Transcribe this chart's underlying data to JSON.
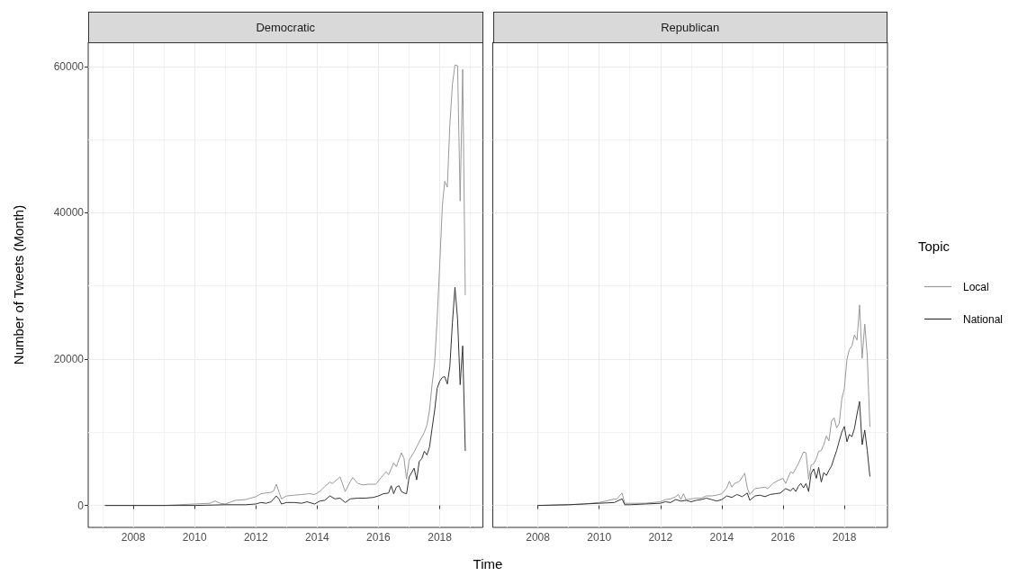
{
  "chart_data": [
    {
      "type": "line",
      "title": "Democratic",
      "xlabel": "Time",
      "ylabel": "Number of Tweets (Month)",
      "series": [
        {
          "color": "#999999",
          "x": [
            "2007-02",
            "2009-01",
            "2009-07",
            "2010-01",
            "2010-07",
            "2010-09",
            "2010-11",
            "2011-01",
            "2011-05",
            "2011-09",
            "2012-01",
            "2012-03",
            "2012-05",
            "2012-07",
            "2012-08",
            "2012-09",
            "2012-10",
            "2012-11",
            "2013-01",
            "2013-04",
            "2013-07",
            "2013-10",
            "2013-12",
            "2014-02",
            "2014-04",
            "2014-06",
            "2014-07",
            "2014-09",
            "2014-10",
            "2014-12",
            "2015-02",
            "2015-03",
            "2015-05",
            "2015-07",
            "2015-09",
            "2015-12",
            "2016-02",
            "2016-04",
            "2016-05",
            "2016-07",
            "2016-08",
            "2016-10",
            "2016-11",
            "2016-12",
            "2017-01",
            "2017-03",
            "2017-05",
            "2017-07",
            "2017-08",
            "2017-09",
            "2017-10",
            "2017-11",
            "2017-12",
            "2018-01",
            "2018-02",
            "2018-03",
            "2018-04",
            "2018-05",
            "2018-06",
            "2018-07",
            "2018-08",
            "2018-09",
            "2018-10",
            "2018-11"
          ],
          "values": [
            0,
            0,
            100,
            200,
            300,
            600,
            300,
            200,
            700,
            800,
            1200,
            1600,
            1700,
            1800,
            2000,
            2900,
            1900,
            900,
            1300,
            1400,
            1500,
            1600,
            1500,
            1900,
            2600,
            3200,
            3000,
            3600,
            3900,
            1900,
            3300,
            3800,
            3000,
            2800,
            2900,
            2900,
            3800,
            4600,
            4200,
            5800,
            5300,
            7200,
            6400,
            3600,
            6200,
            7300,
            8700,
            10000,
            11000,
            13000,
            16500,
            19500,
            25500,
            33000,
            41000,
            44300,
            43500,
            52000,
            57600,
            60200,
            60100,
            41600,
            59600,
            28800
          ]
        },
        {
          "color": "#333333",
          "x": [
            "2007-02",
            "2010-01",
            "2011-01",
            "2011-09",
            "2012-01",
            "2012-03",
            "2012-05",
            "2012-07",
            "2012-09",
            "2012-10",
            "2012-11",
            "2013-01",
            "2013-04",
            "2013-07",
            "2013-09",
            "2013-12",
            "2014-02",
            "2014-04",
            "2014-06",
            "2014-08",
            "2014-10",
            "2014-12",
            "2015-02",
            "2015-05",
            "2015-08",
            "2015-11",
            "2016-01",
            "2016-03",
            "2016-05",
            "2016-06",
            "2016-07",
            "2016-08",
            "2016-09",
            "2016-10",
            "2016-11",
            "2016-12",
            "2017-01",
            "2017-02",
            "2017-03",
            "2017-04",
            "2017-05",
            "2017-06",
            "2017-07",
            "2017-08",
            "2017-09",
            "2017-10",
            "2017-11",
            "2017-12",
            "2018-01",
            "2018-02",
            "2018-03",
            "2018-04",
            "2018-05",
            "2018-06",
            "2018-07",
            "2018-08",
            "2018-09",
            "2018-10",
            "2018-11"
          ],
          "values": [
            0,
            0,
            100,
            100,
            200,
            400,
            300,
            500,
            1300,
            900,
            200,
            400,
            400,
            300,
            500,
            200,
            600,
            700,
            1300,
            900,
            1000,
            400,
            900,
            1000,
            1000,
            1100,
            1300,
            1600,
            1700,
            2700,
            1600,
            2500,
            2700,
            1900,
            1700,
            1600,
            3900,
            4500,
            5100,
            3500,
            6000,
            6400,
            7400,
            6900,
            8000,
            10500,
            13000,
            16000,
            17000,
            17500,
            17600,
            16600,
            19000,
            25000,
            29800,
            25500,
            16500,
            21800,
            7500
          ]
        }
      ],
      "xlim": [
        "2006-07-13",
        "2019-05-30"
      ],
      "xticks": [
        "2008",
        "2010",
        "2012",
        "2014",
        "2016",
        "2018"
      ],
      "ylim": [
        -3000,
        63300
      ],
      "yticks": [
        0,
        20000,
        40000,
        60000
      ],
      "grid": true
    },
    {
      "type": "line",
      "title": "Republican",
      "legend_title": "Topic",
      "series": [
        {
          "name": "Local",
          "color": "#999999",
          "x": [
            "2008-01",
            "2009-01",
            "2009-07",
            "2010-01",
            "2010-06",
            "2010-08",
            "2010-10",
            "2010-11",
            "2011-01",
            "2011-07",
            "2012-01",
            "2012-03",
            "2012-05",
            "2012-07",
            "2012-08",
            "2012-09",
            "2012-10",
            "2012-11",
            "2013-01",
            "2013-03",
            "2013-05",
            "2013-07",
            "2013-09",
            "2013-11",
            "2014-01",
            "2014-03",
            "2014-04",
            "2014-05",
            "2014-06",
            "2014-08",
            "2014-10",
            "2014-11",
            "2014-12",
            "2015-02",
            "2015-04",
            "2015-06",
            "2015-07",
            "2015-09",
            "2015-11",
            "2016-01",
            "2016-02",
            "2016-04",
            "2016-05",
            "2016-07",
            "2016-09",
            "2016-10",
            "2016-11",
            "2016-12",
            "2017-01",
            "2017-02",
            "2017-03",
            "2017-04",
            "2017-05",
            "2017-06",
            "2017-07",
            "2017-08",
            "2017-09",
            "2017-10",
            "2017-11",
            "2017-12",
            "2018-01",
            "2018-02",
            "2018-03",
            "2018-04",
            "2018-05",
            "2018-06",
            "2018-07",
            "2018-08",
            "2018-09",
            "2018-10",
            "2018-11"
          ],
          "values": [
            0,
            100,
            200,
            400,
            800,
            900,
            1700,
            300,
            300,
            300,
            500,
            800,
            900,
            1200,
            1500,
            800,
            1600,
            800,
            900,
            1000,
            1000,
            1300,
            1300,
            1400,
            1600,
            2400,
            3300,
            2500,
            3000,
            3300,
            4400,
            2400,
            1500,
            2300,
            2400,
            2500,
            2300,
            3000,
            3400,
            3700,
            3000,
            4600,
            4400,
            5700,
            7300,
            7200,
            3600,
            5500,
            5700,
            6400,
            7400,
            7500,
            8300,
            9500,
            8800,
            11500,
            12000,
            10600,
            11200,
            14500,
            16000,
            20000,
            21300,
            21800,
            23300,
            22600,
            27400,
            20100,
            24800,
            20500,
            10800
          ]
        },
        {
          "name": "National",
          "color": "#333333",
          "x": [
            "2008-01",
            "2009-01",
            "2009-07",
            "2010-01",
            "2010-07",
            "2010-10",
            "2010-11",
            "2011-01",
            "2011-07",
            "2012-01",
            "2012-03",
            "2012-05",
            "2012-07",
            "2012-09",
            "2012-11",
            "2013-01",
            "2013-03",
            "2013-05",
            "2013-07",
            "2013-09",
            "2013-11",
            "2014-01",
            "2014-03",
            "2014-05",
            "2014-07",
            "2014-09",
            "2014-11",
            "2014-12",
            "2015-02",
            "2015-04",
            "2015-06",
            "2015-08",
            "2015-10",
            "2015-12",
            "2016-02",
            "2016-04",
            "2016-05",
            "2016-06",
            "2016-07",
            "2016-08",
            "2016-09",
            "2016-10",
            "2016-11",
            "2016-12",
            "2017-01",
            "2017-02",
            "2017-03",
            "2017-04",
            "2017-05",
            "2017-06",
            "2017-07",
            "2017-08",
            "2017-09",
            "2017-10",
            "2017-11",
            "2017-12",
            "2018-01",
            "2018-02",
            "2018-03",
            "2018-04",
            "2018-05",
            "2018-06",
            "2018-07",
            "2018-08",
            "2018-09",
            "2018-10",
            "2018-11"
          ],
          "values": [
            0,
            100,
            200,
            300,
            400,
            900,
            100,
            100,
            200,
            300,
            500,
            400,
            800,
            600,
            700,
            500,
            700,
            800,
            1000,
            800,
            600,
            800,
            1300,
            1100,
            1500,
            1200,
            1700,
            700,
            1300,
            1400,
            1200,
            1500,
            1600,
            1700,
            2300,
            2000,
            2400,
            1900,
            2600,
            3000,
            2400,
            3000,
            1900,
            4400,
            5000,
            3700,
            5200,
            3200,
            4500,
            4100,
            4800,
            5400,
            6500,
            7500,
            8800,
            10000,
            10800,
            8700,
            9700,
            9400,
            10500,
            12500,
            14200,
            8300,
            10300,
            7500,
            4000
          ]
        }
      ],
      "xlim": [
        "2006-07-13",
        "2019-05-30"
      ],
      "xticks": [
        "2008",
        "2010",
        "2012",
        "2014",
        "2016",
        "2018"
      ],
      "ylim": [
        -3000,
        63300
      ],
      "yticks": [
        0,
        20000,
        40000,
        60000
      ],
      "grid": true,
      "legend": "right",
      "tick_labels": "x"
    }
  ]
}
